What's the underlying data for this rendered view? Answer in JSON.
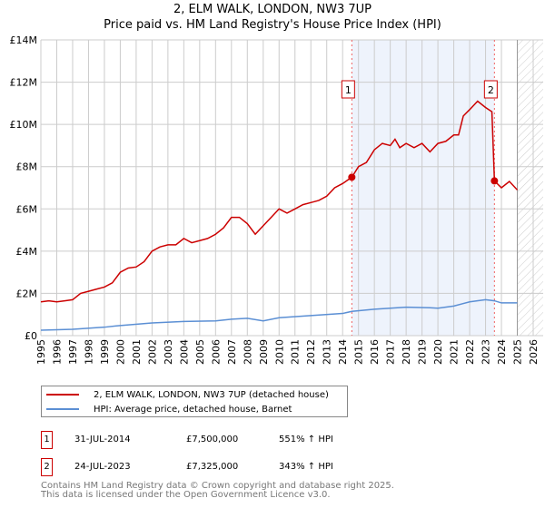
{
  "chart_data": {
    "type": "line",
    "title": "2, ELM WALK, LONDON, NW3 7UP",
    "subtitle": "Price paid vs. HM Land Registry's House Price Index (HPI)",
    "xlim": [
      1995,
      2026
    ],
    "ylim": [
      0,
      14000000
    ],
    "y_ticks": [
      {
        "v": 0,
        "label": "£0"
      },
      {
        "v": 2000000,
        "label": "£2M"
      },
      {
        "v": 4000000,
        "label": "£4M"
      },
      {
        "v": 6000000,
        "label": "£6M"
      },
      {
        "v": 8000000,
        "label": "£8M"
      },
      {
        "v": 10000000,
        "label": "£10M"
      },
      {
        "v": 12000000,
        "label": "£12M"
      },
      {
        "v": 14000000,
        "label": "£14M"
      }
    ],
    "x_ticks": [
      "1995",
      "1996",
      "1997",
      "1998",
      "1999",
      "2000",
      "2001",
      "2002",
      "2003",
      "2004",
      "2005",
      "2006",
      "2007",
      "2008",
      "2009",
      "2010",
      "2011",
      "2012",
      "2013",
      "2014",
      "2015",
      "2016",
      "2017",
      "2018",
      "2019",
      "2020",
      "2021",
      "2022",
      "2023",
      "2024",
      "2025",
      "2026"
    ],
    "grid": true,
    "shaded_region": [
      2014.58,
      2023.56
    ],
    "hatched_from": 2025.0,
    "series": [
      {
        "name": "2, ELM WALK, LONDON, NW3 7UP (detached house)",
        "color": "#cc0000",
        "x": [
          1995,
          1995.5,
          1996,
          1996.5,
          1997,
          1997.5,
          1998,
          1998.5,
          1999,
          1999.5,
          2000,
          2000.5,
          2001,
          2001.5,
          2002,
          2002.5,
          2003,
          2003.5,
          2004,
          2004.5,
          2005,
          2005.5,
          2006,
          2006.5,
          2007,
          2007.5,
          2008,
          2008.5,
          2009,
          2009.5,
          2010,
          2010.5,
          2011,
          2011.5,
          2012,
          2012.5,
          2013,
          2013.5,
          2014,
          2014.58,
          2015,
          2015.5,
          2016,
          2016.5,
          2017,
          2017.3,
          2017.6,
          2018,
          2018.5,
          2019,
          2019.5,
          2020,
          2020.5,
          2021,
          2021.3,
          2021.6,
          2022,
          2022.5,
          2023,
          2023.4,
          2023.56,
          2024,
          2024.5,
          2025
        ],
        "y": [
          1600000,
          1650000,
          1600000,
          1650000,
          1700000,
          2000000,
          2100000,
          2200000,
          2300000,
          2500000,
          3000000,
          3200000,
          3250000,
          3500000,
          4000000,
          4200000,
          4300000,
          4300000,
          4600000,
          4400000,
          4500000,
          4600000,
          4800000,
          5100000,
          5600000,
          5600000,
          5300000,
          4800000,
          5200000,
          5600000,
          6000000,
          5800000,
          6000000,
          6200000,
          6300000,
          6400000,
          6600000,
          7000000,
          7200000,
          7500000,
          8000000,
          8200000,
          8800000,
          9100000,
          9000000,
          9300000,
          8900000,
          9100000,
          8900000,
          9100000,
          8700000,
          9100000,
          9200000,
          9500000,
          9500000,
          10400000,
          10700000,
          11100000,
          10800000,
          10600000,
          7325000,
          7000000,
          7300000,
          6900000
        ]
      },
      {
        "name": "HPI: Average price, detached house, Barnet",
        "color": "#5b8fd4",
        "x": [
          1995,
          1997,
          1999,
          2000,
          2002,
          2004,
          2006,
          2007,
          2008,
          2009,
          2010,
          2012,
          2014,
          2014.58,
          2016,
          2018,
          2019.5,
          2020,
          2021,
          2022,
          2023,
          2023.56,
          2024,
          2025
        ],
        "y": [
          260000,
          300000,
          400000,
          480000,
          600000,
          670000,
          700000,
          780000,
          820000,
          700000,
          850000,
          950000,
          1050000,
          1150000,
          1250000,
          1350000,
          1320000,
          1300000,
          1400000,
          1600000,
          1700000,
          1650000,
          1550000,
          1550000
        ]
      }
    ],
    "annotations": [
      {
        "label": "1",
        "x": 2014.58,
        "y": 7500000
      },
      {
        "label": "2",
        "x": 2023.56,
        "y": 7325000
      }
    ]
  },
  "legend": [
    "2, ELM WALK, LONDON, NW3 7UP (detached house)",
    "HPI: Average price, detached house, Barnet"
  ],
  "transactions": [
    {
      "num": "1",
      "date": "31-JUL-2014",
      "price": "£7,500,000",
      "hpi": "551% ↑ HPI"
    },
    {
      "num": "2",
      "date": "24-JUL-2023",
      "price": "£7,325,000",
      "hpi": "343% ↑ HPI"
    }
  ],
  "footer": [
    "Contains HM Land Registry data © Crown copyright and database right 2025.",
    "This data is licensed under the Open Government Licence v3.0."
  ]
}
